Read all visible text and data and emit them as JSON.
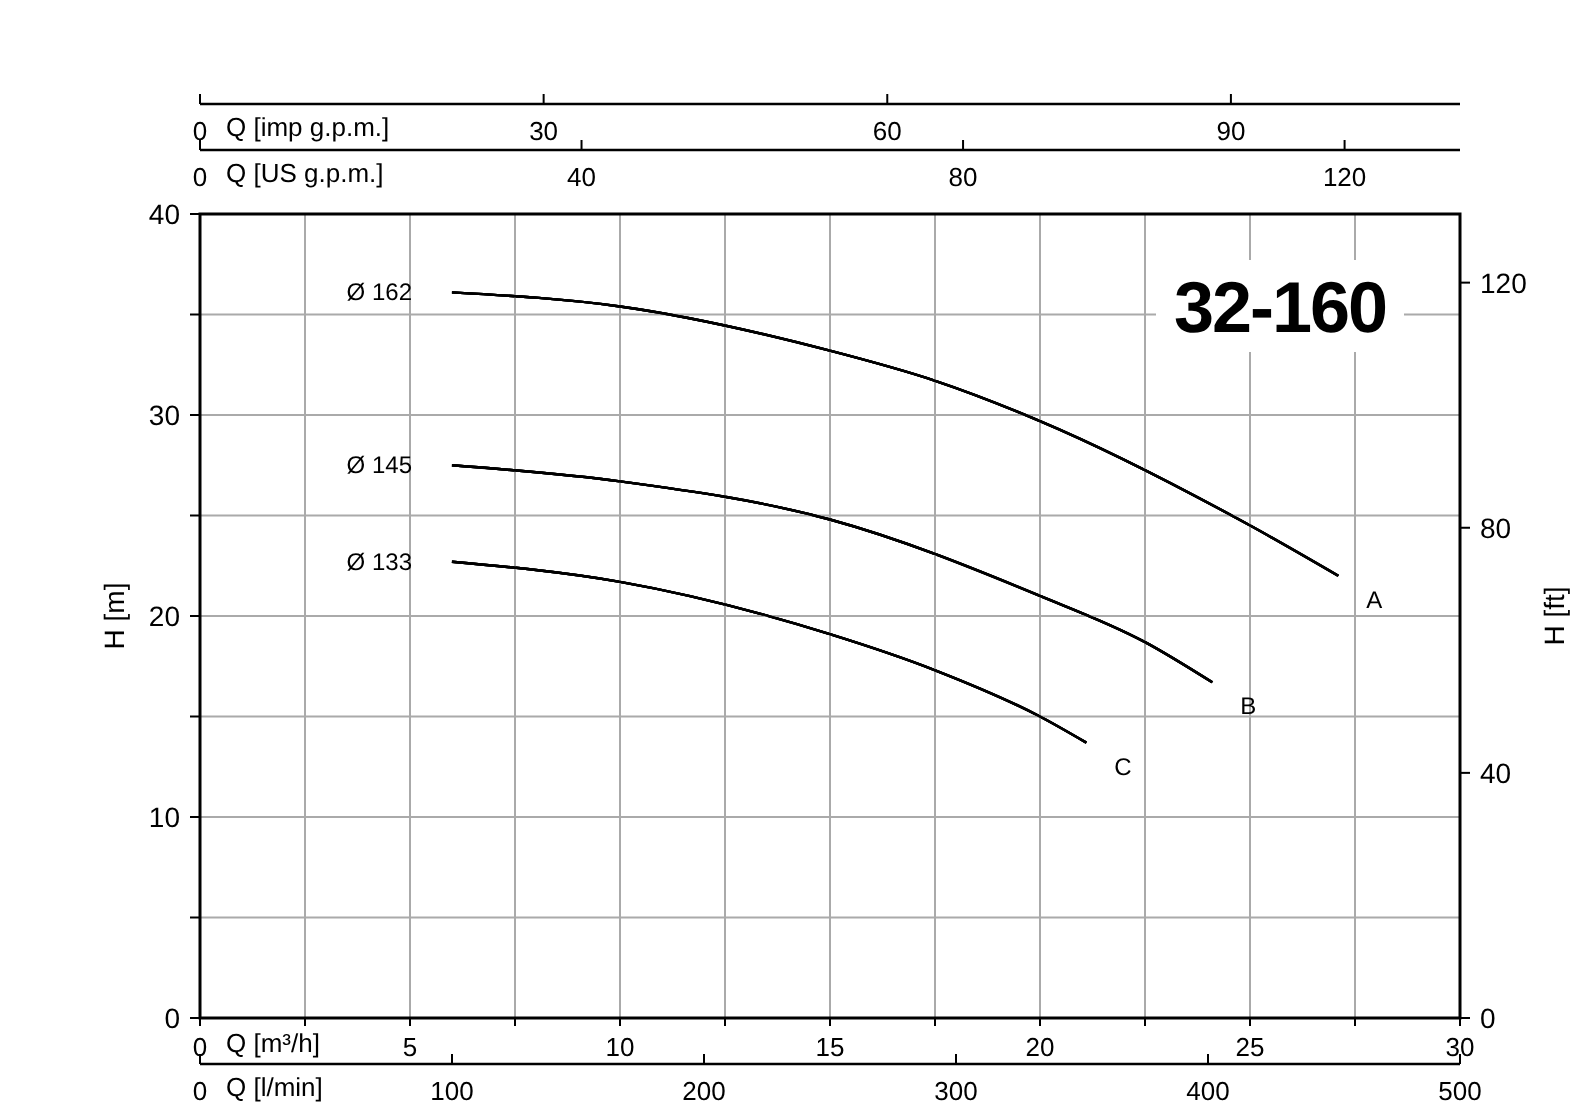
{
  "chart_data": [
    {
      "type": "line",
      "xlabel": "Q [imp g.p.m.]",
      "xlim": [
        0,
        110
      ],
      "xticks": [
        0,
        30,
        60,
        90
      ],
      "ylim": [
        0,
        40
      ],
      "tick_labels": "x",
      "series": [
        {
          "color": "#000000",
          "x": [
            22.0,
            36.7,
            55.0,
            64.2,
            73.3,
            91.7,
            99.4
          ],
          "values": [
            36.1,
            35.4,
            33.2,
            31.7,
            29.7,
            24.5,
            22.0
          ]
        },
        {
          "color": "#000000",
          "x": [
            22.0,
            36.7,
            55.0,
            73.3,
            82.5,
            88.4
          ],
          "values": [
            27.5,
            26.7,
            24.8,
            21.0,
            18.7,
            16.7
          ]
        },
        {
          "color": "#000000",
          "x": [
            22.0,
            36.7,
            55.0,
            64.2,
            73.3,
            77.4
          ],
          "values": [
            22.7,
            21.7,
            19.1,
            17.3,
            15.0,
            13.7
          ]
        }
      ]
    },
    {
      "type": "line",
      "xlabel": "Q [US g.p.m.]",
      "xlim": [
        0,
        132.1
      ],
      "xticks": [
        0,
        40,
        80,
        120
      ],
      "ylim": [
        0,
        40
      ],
      "tick_labels": "x",
      "series": [
        {
          "color": "#000000",
          "x": [
            26.4,
            44.0,
            66.0,
            77.1,
            88.1,
            110.1,
            119.3
          ],
          "values": [
            36.1,
            35.4,
            33.2,
            31.7,
            29.7,
            24.5,
            22.0
          ]
        },
        {
          "color": "#000000",
          "x": [
            26.4,
            44.0,
            66.0,
            88.1,
            99.1,
            106.1
          ],
          "values": [
            27.5,
            26.7,
            24.8,
            21.0,
            18.7,
            16.7
          ]
        },
        {
          "color": "#000000",
          "x": [
            26.4,
            44.0,
            66.0,
            77.1,
            88.1,
            92.9
          ],
          "values": [
            22.7,
            21.7,
            19.1,
            17.3,
            15.0,
            13.7
          ]
        }
      ]
    },
    {
      "type": "line",
      "title": "32-160",
      "xlabel": "Q [m³/h]",
      "ylabel": "H [m]",
      "y2label": "H [ft]",
      "xlim": [
        0,
        30
      ],
      "xticks": [
        0,
        {
          "value": 2.5,
          "label": null
        },
        5,
        {
          "value": 7.5,
          "label": null
        },
        10,
        {
          "value": 12.5,
          "label": null
        },
        15,
        {
          "value": 17.5,
          "label": null
        },
        20,
        {
          "value": 22.5,
          "label": null
        },
        25,
        {
          "value": 27.5,
          "label": null
        },
        30
      ],
      "ylim": [
        0,
        40
      ],
      "yticks": [
        0,
        {
          "value": 5,
          "label": null
        },
        10,
        {
          "value": 15,
          "label": null
        },
        20,
        {
          "value": 25,
          "label": null
        },
        30,
        {
          "value": 35,
          "label": null
        },
        40
      ],
      "y2lim": [
        0,
        131.2
      ],
      "y2ticks": [
        0,
        40,
        80,
        120
      ],
      "grid": true,
      "line_style": "solid",
      "marker": "none",
      "series": [
        {
          "name": "Ø 162",
          "color": "#000000",
          "x": [
            6,
            10,
            15,
            17.5,
            20,
            25,
            27.1
          ],
          "values": [
            36.1,
            35.4,
            33.2,
            31.7,
            29.7,
            24.5,
            22.0
          ]
        },
        {
          "name": "Ø 145",
          "color": "#000000",
          "x": [
            6,
            10,
            15,
            20,
            22.5,
            24.1
          ],
          "values": [
            27.5,
            26.7,
            24.8,
            21.0,
            18.7,
            16.7
          ]
        },
        {
          "name": "Ø 133",
          "color": "#000000",
          "x": [
            6,
            10,
            15,
            17.5,
            20,
            21.1
          ],
          "values": [
            22.7,
            21.7,
            19.1,
            17.3,
            15.0,
            13.7
          ]
        }
      ],
      "annotations": [
        {
          "text": "A",
          "x": 27.1,
          "y": 22.0
        },
        {
          "text": "B",
          "x": 24.1,
          "y": 16.7
        },
        {
          "text": "C",
          "x": 21.1,
          "y": 13.7
        }
      ]
    },
    {
      "type": "line",
      "xlabel": "Q [l/min]",
      "xlim": [
        0,
        500
      ],
      "xticks": [
        0,
        100,
        200,
        300,
        400,
        500
      ],
      "ylim": [
        0,
        40
      ],
      "tick_labels": "x",
      "series": [
        {
          "color": "#000000",
          "x": [
            100,
            166.7,
            250,
            291.7,
            333.3,
            416.7,
            451.7
          ],
          "values": [
            36.1,
            35.4,
            33.2,
            31.7,
            29.7,
            24.5,
            22.0
          ]
        },
        {
          "color": "#000000",
          "x": [
            100,
            166.7,
            250,
            333.3,
            375,
            401.7
          ],
          "values": [
            27.5,
            26.7,
            24.8,
            21.0,
            18.7,
            16.7
          ]
        },
        {
          "color": "#000000",
          "x": [
            100,
            166.7,
            250,
            291.7,
            333.3,
            351.7
          ],
          "values": [
            22.7,
            21.7,
            19.1,
            17.3,
            15.0,
            13.7
          ]
        }
      ]
    }
  ]
}
